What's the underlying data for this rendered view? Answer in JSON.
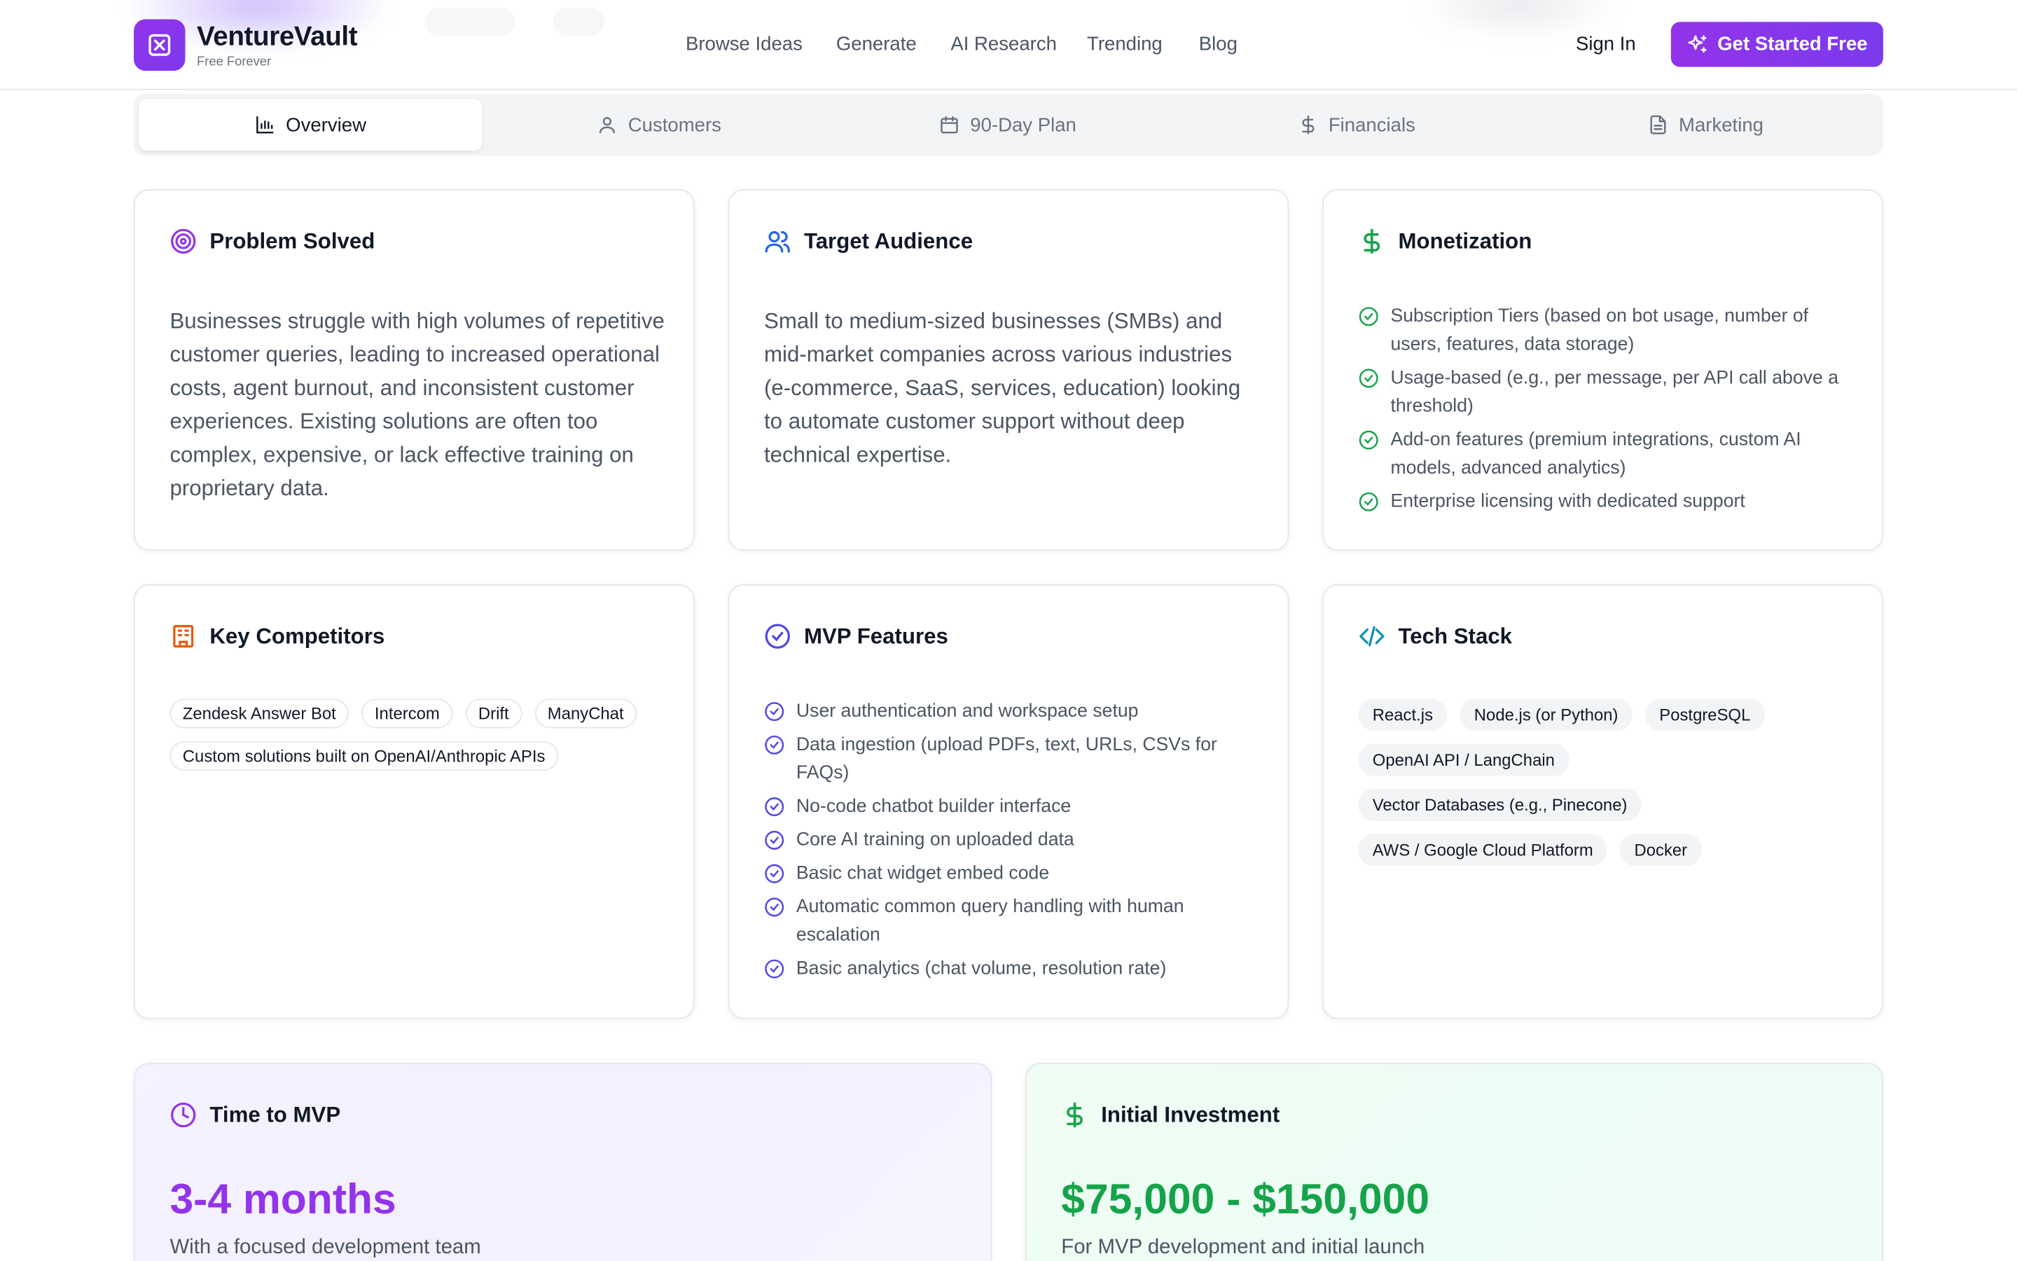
{
  "header": {
    "brand": "VentureVault",
    "brand_sub": "Free Forever",
    "nav": [
      "Browse Ideas",
      "Generate",
      "AI Research",
      "Trending",
      "Blog"
    ],
    "sign_in": "Sign In",
    "cta": "Get Started Free"
  },
  "tabs": [
    {
      "label": "Overview",
      "icon": "bar-chart-icon",
      "active": true
    },
    {
      "label": "Customers",
      "icon": "user-icon",
      "active": false
    },
    {
      "label": "90-Day Plan",
      "icon": "calendar-icon",
      "active": false
    },
    {
      "label": "Financials",
      "icon": "dollar-icon",
      "active": false
    },
    {
      "label": "Marketing",
      "icon": "document-icon",
      "active": false
    }
  ],
  "problem": {
    "title": "Problem Solved",
    "text": "Businesses struggle with high volumes of repetitive customer queries, leading to increased operational costs, agent burnout, and inconsistent customer experiences. Existing solutions are often too complex, expensive, or lack effective training on proprietary data."
  },
  "audience": {
    "title": "Target Audience",
    "text": "Small to medium-sized businesses (SMBs) and mid-market companies across various industries (e-commerce, SaaS, services, education) looking to automate customer support without deep technical expertise."
  },
  "monetization": {
    "title": "Monetization",
    "items": [
      "Subscription Tiers (based on bot usage, number of users, features, data storage)",
      "Usage-based (e.g., per message, per API call above a threshold)",
      "Add-on features (premium integrations, custom AI models, advanced analytics)",
      "Enterprise licensing with dedicated support"
    ]
  },
  "competitors": {
    "title": "Key Competitors",
    "items": [
      "Zendesk Answer Bot",
      "Intercom",
      "Drift",
      "ManyChat",
      "Custom solutions built on OpenAI/Anthropic APIs"
    ]
  },
  "mvp": {
    "title": "MVP Features",
    "items": [
      "User authentication and workspace setup",
      "Data ingestion (upload PDFs, text, URLs, CSVs for FAQs)",
      "No-code chatbot builder interface",
      "Core AI training on uploaded data",
      "Basic chat widget embed code",
      "Automatic common query handling with human escalation",
      "Basic analytics (chat volume, resolution rate)"
    ]
  },
  "tech": {
    "title": "Tech Stack",
    "items": [
      "React.js",
      "Node.js (or Python)",
      "PostgreSQL",
      "OpenAI API / LangChain",
      "Vector Databases (e.g., Pinecone)",
      "AWS / Google Cloud Platform",
      "Docker"
    ]
  },
  "time_to_mvp": {
    "title": "Time to MVP",
    "value": "3-4 months",
    "sub": "With a focused development team"
  },
  "investment": {
    "title": "Initial Investment",
    "value": "$75,000 - $150,000",
    "sub": "For MVP development and initial launch"
  },
  "colors": {
    "purple": "#9333ea",
    "green": "#16a34a",
    "blue": "#2563eb",
    "indigo": "#4f46e5",
    "orange": "#ea580c",
    "teal": "#0891b2"
  }
}
